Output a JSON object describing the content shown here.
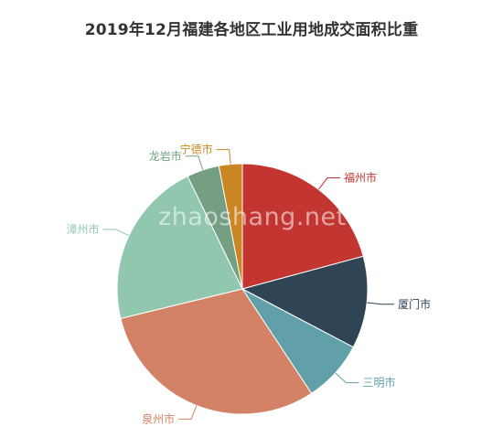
{
  "watermark": "zhaoshang.net",
  "chart_data": {
    "type": "pie",
    "title": "2019年12月福建各地区工业用地成交面积比重",
    "start_angle_deg": 0,
    "direction": "clockwise",
    "slices": [
      {
        "label": "福州市",
        "value": 20.8,
        "color": "#c23531"
      },
      {
        "label": "厦门市",
        "value": 11.9,
        "color": "#2f4554"
      },
      {
        "label": "三明市",
        "value": 8.0,
        "color": "#61a0a8"
      },
      {
        "label": "泉州市",
        "value": 30.5,
        "color": "#d48265"
      },
      {
        "label": "漳州市",
        "value": 21.6,
        "color": "#91c7ae"
      },
      {
        "label": "龙岩市",
        "value": 4.2,
        "color": "#749f83"
      },
      {
        "label": "宁德市",
        "value": 3.0,
        "color": "#ca8622"
      }
    ]
  }
}
